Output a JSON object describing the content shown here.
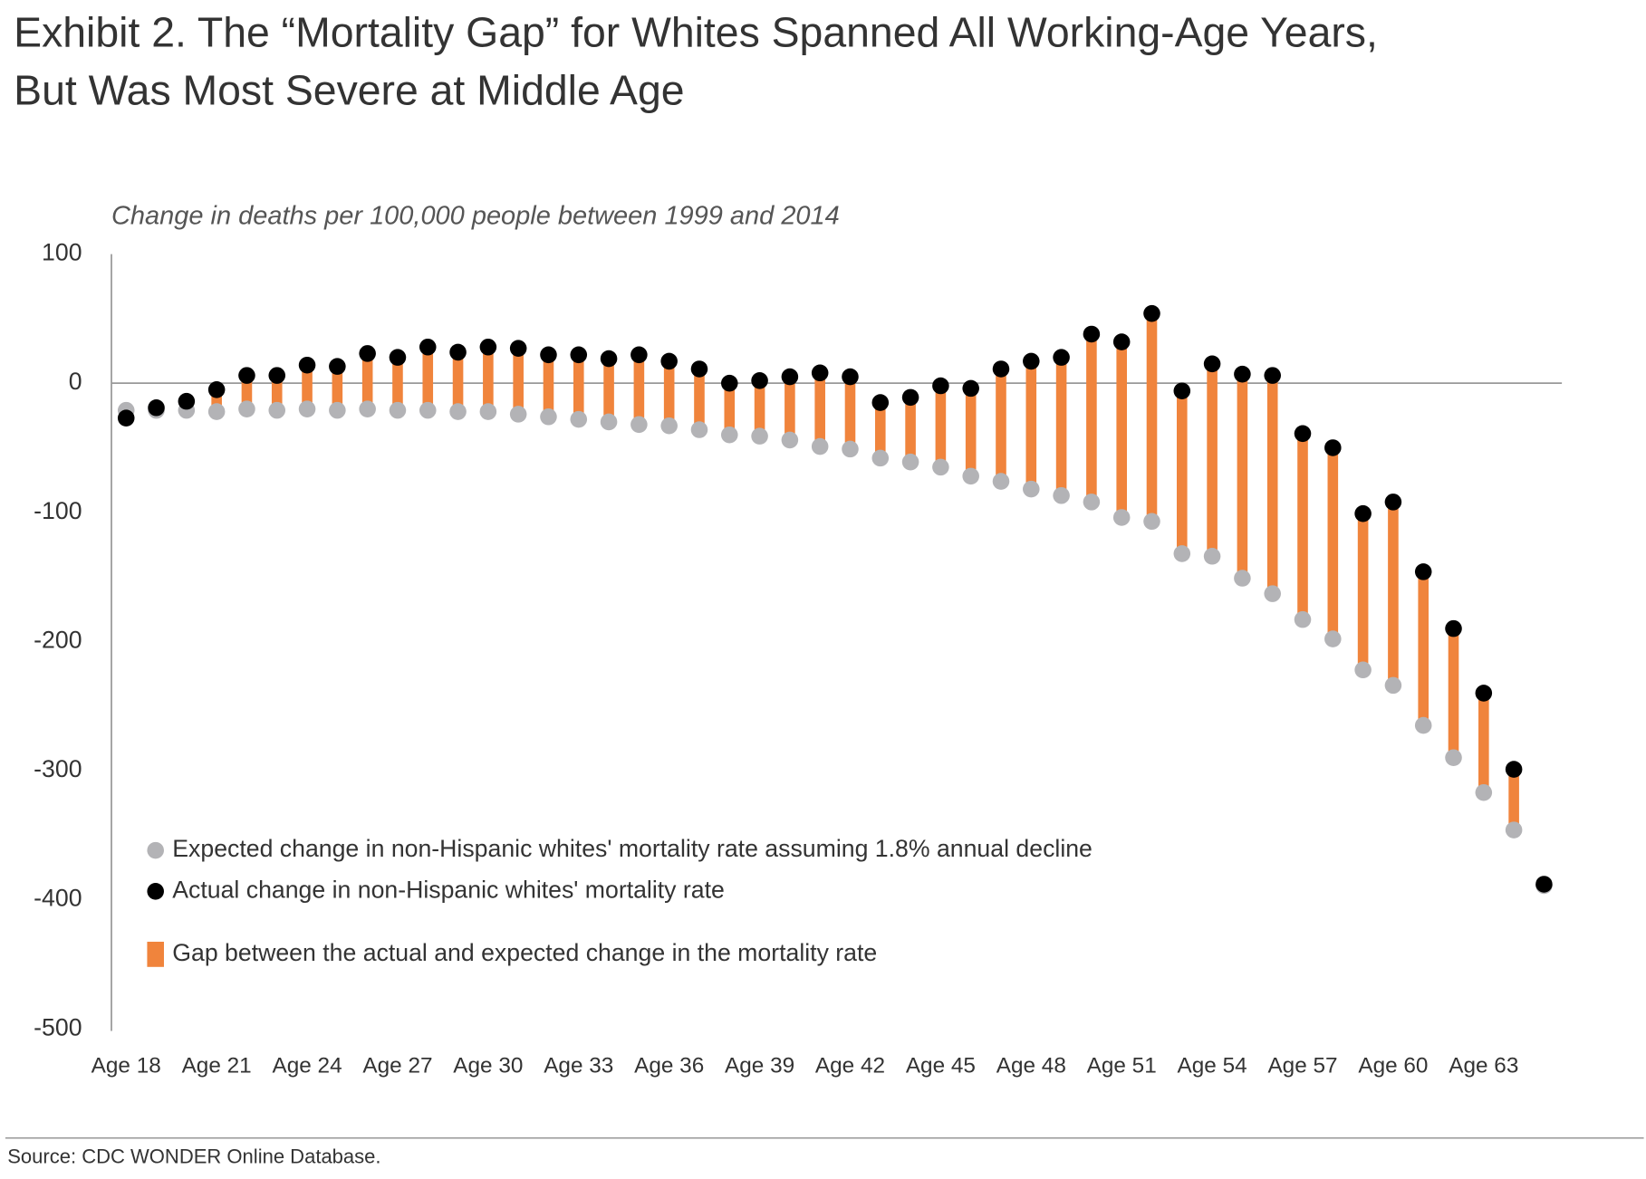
{
  "chart_data": {
    "type": "dumbbell",
    "title": [
      "Exhibit 2. The “Mortality Gap” for Whites Spanned All Working-Age Years,",
      "But Was Most Severe at Middle Age"
    ],
    "subtitle": "Change in deaths per 100,000 people between 1999 and 2014",
    "source": "Source: CDC WONDER Online Database.",
    "categories": [
      "Age 18",
      null,
      null,
      "Age 21",
      null,
      null,
      "Age 24",
      null,
      null,
      "Age 27",
      null,
      null,
      "Age 30",
      null,
      null,
      "Age 33",
      null,
      null,
      "Age 36",
      null,
      null,
      "Age 39",
      null,
      null,
      "Age 42",
      null,
      null,
      "Age 45",
      null,
      null,
      "Age 48",
      null,
      null,
      "Age 51",
      null,
      null,
      "Age 54",
      null,
      null,
      "Age 57",
      null,
      null,
      "Age 60",
      null,
      null,
      "Age 63",
      null,
      null
    ],
    "series": [
      {
        "name": "Expected change in non-Hispanic whites' mortality rate assuming 1.8% annual decline",
        "color": "#b3b3b6",
        "values": [
          -21,
          -21,
          -21,
          -22,
          -20,
          -21,
          -20,
          -21,
          -20,
          -21,
          -21,
          -22,
          -22,
          -24,
          -26,
          -28,
          -30,
          -32,
          -33,
          -36,
          -40,
          -41,
          -44,
          -49,
          -51,
          -58,
          -61,
          -65,
          -72,
          -76,
          -82,
          -87,
          -92,
          -104,
          -107,
          -132,
          -134,
          -151,
          -163,
          -183,
          -198,
          -222,
          -234,
          -265,
          -290,
          -317,
          -346,
          -389
        ]
      },
      {
        "name": "Actual change in non-Hispanic whites' mortality rate",
        "color": "#000000",
        "values": [
          -27,
          -19,
          -14,
          -5,
          6,
          6,
          14,
          13,
          23,
          20,
          28,
          24,
          28,
          27,
          22,
          22,
          19,
          22,
          17,
          11,
          0,
          2,
          5,
          8,
          5,
          -15,
          -11,
          -2,
          -4,
          11,
          17,
          20,
          38,
          32,
          54,
          -6,
          15,
          7,
          6,
          -39,
          -50,
          -101,
          -92,
          -146,
          -190,
          -240,
          -299,
          -388
        ]
      }
    ],
    "gap": {
      "name": "Gap between the actual and expected change in the mortality rate",
      "color": "#f0843c"
    },
    "ylim": [
      -500,
      100
    ],
    "yticks": [
      100,
      0,
      -100,
      -200,
      -300,
      -400,
      -500
    ]
  }
}
